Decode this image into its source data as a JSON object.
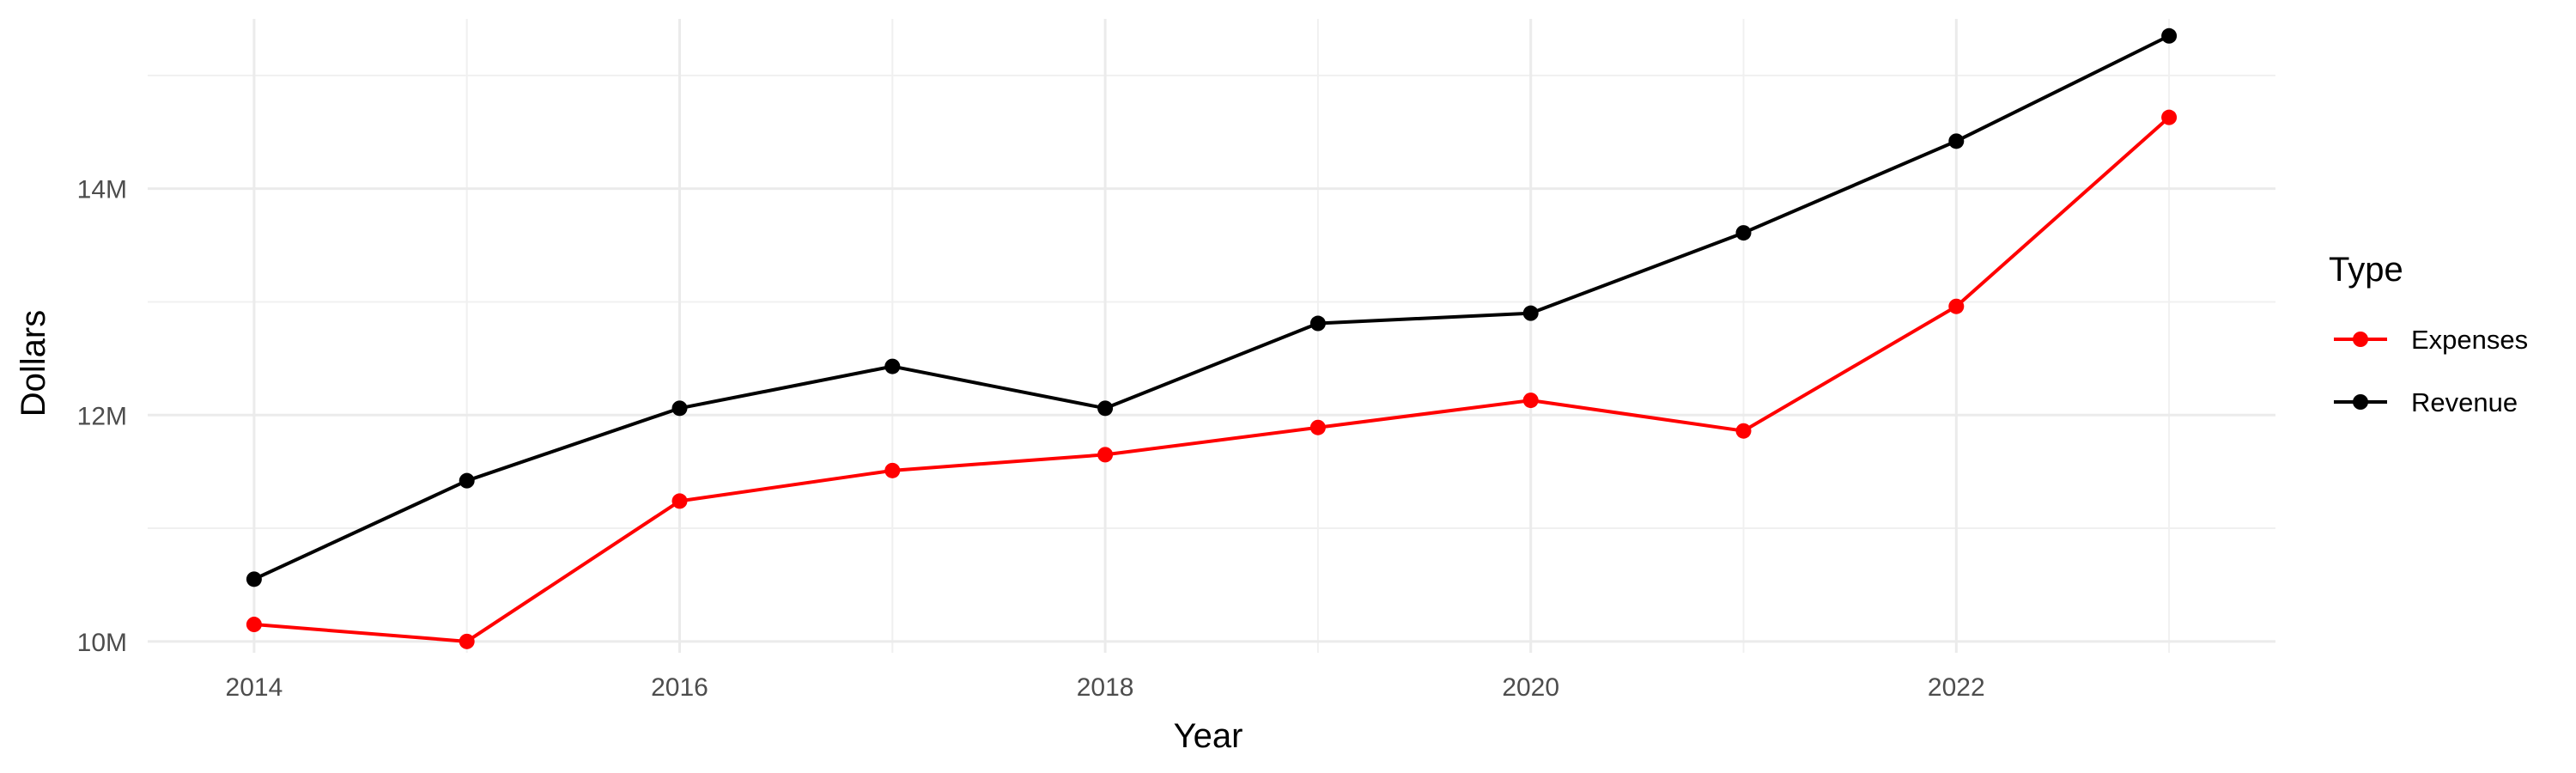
{
  "chart_data": {
    "type": "line",
    "title": "",
    "xlabel": "Year",
    "ylabel": "Dollars",
    "x": [
      2014,
      2015,
      2016,
      2017,
      2018,
      2019,
      2020,
      2021,
      2022,
      2023
    ],
    "xlim": [
      2013.5,
      2023.5
    ],
    "ylim": [
      9.9,
      15.5
    ],
    "x_ticks": [
      2014,
      2016,
      2018,
      2020,
      2022
    ],
    "x_tick_labels": [
      "2014",
      "2016",
      "2018",
      "2020",
      "2022"
    ],
    "y_ticks": [
      10,
      12,
      14
    ],
    "y_tick_labels": [
      "10M",
      "12M",
      "14M"
    ],
    "y_unit": "millions of dollars",
    "grid": true,
    "legend": {
      "title": "Type",
      "position": "right"
    },
    "series": [
      {
        "name": "Expenses",
        "color": "#ff0000",
        "values": [
          10.15,
          10.0,
          11.24,
          11.51,
          11.65,
          11.89,
          12.13,
          11.86,
          12.96,
          14.63
        ]
      },
      {
        "name": "Revenue",
        "color": "#000000",
        "values": [
          10.55,
          11.42,
          12.06,
          12.43,
          12.06,
          12.81,
          12.9,
          13.61,
          14.42,
          15.35
        ]
      }
    ]
  }
}
